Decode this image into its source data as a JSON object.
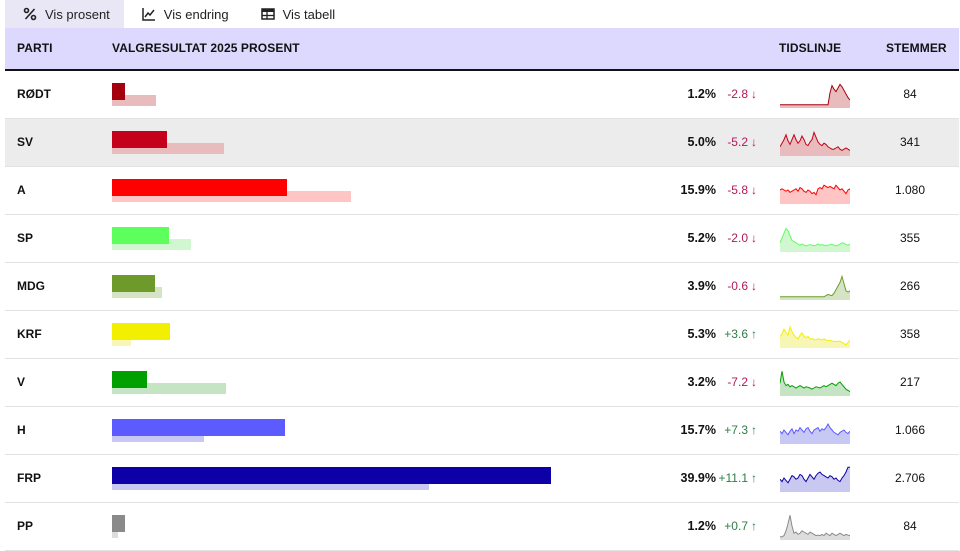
{
  "tabs": [
    {
      "label": "Vis prosent",
      "icon": "percent-icon",
      "active": true
    },
    {
      "label": "Vis endring",
      "icon": "line-chart-icon",
      "active": false
    },
    {
      "label": "Vis tabell",
      "icon": "table-icon",
      "active": false
    }
  ],
  "table": {
    "headers": {
      "party": "PARTI",
      "result": "VALGRESULTAT 2025 PROSENT",
      "timeline": "TIDSLINJE",
      "votes": "STEMMER"
    },
    "rows": [
      {
        "party": "RØDT",
        "pct": 1.2,
        "pct_label": "1.2%",
        "prev_pct": 4.0,
        "change": "-2.8",
        "dir": "down",
        "votes": "84",
        "color": "#a5000e",
        "light": "#e8bcbc",
        "spark": [
          0.05,
          0.05,
          0.05,
          0.05,
          0.05,
          0.05,
          0.05,
          0.05,
          0.05,
          0.05,
          0.05,
          0.05,
          0.05,
          0.05,
          0.05,
          0.05,
          0.05,
          0.05,
          0.05,
          0.05,
          0.05,
          0.05,
          0.05,
          0.05,
          0.05,
          0.55,
          0.85,
          0.7,
          0.6,
          0.75,
          0.9,
          0.8,
          0.65,
          0.5,
          0.35,
          0.25
        ]
      },
      {
        "party": "SV",
        "pct": 5.0,
        "pct_label": "5.0%",
        "prev_pct": 10.2,
        "change": "-5.2",
        "dir": "down",
        "votes": "341",
        "color": "#c4001a",
        "light": "#e8bcbc",
        "spark": [
          0.3,
          0.45,
          0.6,
          0.8,
          0.55,
          0.4,
          0.6,
          0.8,
          0.6,
          0.45,
          0.55,
          0.75,
          0.6,
          0.4,
          0.35,
          0.5,
          0.6,
          0.9,
          0.7,
          0.5,
          0.4,
          0.35,
          0.45,
          0.4,
          0.3,
          0.25,
          0.2,
          0.2,
          0.25,
          0.3,
          0.2,
          0.15,
          0.2,
          0.25,
          0.2,
          0.15
        ]
      },
      {
        "party": "A",
        "pct": 15.9,
        "pct_label": "15.9%",
        "prev_pct": 21.7,
        "change": "-5.8",
        "dir": "down",
        "votes": "1.080",
        "color": "#ff0000",
        "light": "#ffc4c4",
        "spark": [
          0.5,
          0.55,
          0.5,
          0.45,
          0.5,
          0.4,
          0.45,
          0.5,
          0.55,
          0.45,
          0.6,
          0.55,
          0.45,
          0.4,
          0.5,
          0.45,
          0.35,
          0.4,
          0.3,
          0.55,
          0.6,
          0.55,
          0.7,
          0.65,
          0.6,
          0.65,
          0.6,
          0.55,
          0.7,
          0.6,
          0.5,
          0.55,
          0.45,
          0.35,
          0.5,
          0.55
        ]
      },
      {
        "party": "SP",
        "pct": 5.2,
        "pct_label": "5.2%",
        "prev_pct": 7.2,
        "change": "-2.0",
        "dir": "down",
        "votes": "355",
        "color": "#5cff5c",
        "light": "#d0f7d0",
        "spark": [
          0.3,
          0.5,
          0.7,
          0.9,
          0.8,
          0.6,
          0.4,
          0.35,
          0.3,
          0.25,
          0.2,
          0.25,
          0.2,
          0.18,
          0.2,
          0.22,
          0.2,
          0.18,
          0.2,
          0.25,
          0.2,
          0.22,
          0.2,
          0.18,
          0.2,
          0.22,
          0.25,
          0.2,
          0.18,
          0.2,
          0.25,
          0.3,
          0.28,
          0.22,
          0.2,
          0.25
        ]
      },
      {
        "party": "MDG",
        "pct": 3.9,
        "pct_label": "3.9%",
        "prev_pct": 4.5,
        "change": "-0.6",
        "dir": "down",
        "votes": "266",
        "color": "#6e9a2c",
        "light": "#d4e4c4",
        "spark": [
          0.05,
          0.05,
          0.05,
          0.05,
          0.05,
          0.05,
          0.05,
          0.05,
          0.05,
          0.05,
          0.05,
          0.05,
          0.05,
          0.05,
          0.05,
          0.05,
          0.05,
          0.05,
          0.05,
          0.05,
          0.05,
          0.05,
          0.05,
          0.1,
          0.15,
          0.12,
          0.1,
          0.2,
          0.35,
          0.5,
          0.65,
          0.9,
          0.6,
          0.3,
          0.25,
          0.3
        ]
      },
      {
        "party": "KRF",
        "pct": 5.3,
        "pct_label": "5.3%",
        "prev_pct": 1.7,
        "change": "+3.6",
        "dir": "up",
        "votes": "358",
        "color": "#f2ef00",
        "light": "#f8f6b4",
        "spark": [
          0.4,
          0.5,
          0.7,
          0.55,
          0.45,
          0.8,
          0.6,
          0.45,
          0.35,
          0.3,
          0.45,
          0.55,
          0.4,
          0.35,
          0.4,
          0.3,
          0.3,
          0.28,
          0.25,
          0.3,
          0.28,
          0.25,
          0.3,
          0.25,
          0.22,
          0.25,
          0.2,
          0.2,
          0.18,
          0.2,
          0.2,
          0.15,
          0.1,
          0.05,
          0.15,
          0.25
        ]
      },
      {
        "party": "V",
        "pct": 3.2,
        "pct_label": "3.2%",
        "prev_pct": 10.4,
        "change": "-7.2",
        "dir": "down",
        "votes": "217",
        "color": "#00a000",
        "light": "#c4e4c4",
        "spark": [
          0.45,
          0.95,
          0.5,
          0.35,
          0.4,
          0.3,
          0.35,
          0.3,
          0.25,
          0.3,
          0.35,
          0.3,
          0.25,
          0.3,
          0.28,
          0.25,
          0.2,
          0.25,
          0.3,
          0.28,
          0.25,
          0.3,
          0.35,
          0.3,
          0.35,
          0.4,
          0.45,
          0.4,
          0.35,
          0.45,
          0.5,
          0.4,
          0.3,
          0.2,
          0.15,
          0.1
        ]
      },
      {
        "party": "H",
        "pct": 15.7,
        "pct_label": "15.7%",
        "prev_pct": 8.4,
        "change": "+7.3",
        "dir": "up",
        "votes": "1.066",
        "color": "#5b5bff",
        "light": "#c8c8f4",
        "spark": [
          0.45,
          0.35,
          0.5,
          0.4,
          0.3,
          0.45,
          0.55,
          0.35,
          0.5,
          0.45,
          0.6,
          0.5,
          0.4,
          0.55,
          0.6,
          0.45,
          0.35,
          0.5,
          0.55,
          0.6,
          0.45,
          0.55,
          0.5,
          0.6,
          0.75,
          0.6,
          0.5,
          0.4,
          0.35,
          0.3,
          0.4,
          0.45,
          0.5,
          0.4,
          0.35,
          0.45
        ]
      },
      {
        "party": "FRP",
        "pct": 39.9,
        "pct_label": "39.9%",
        "prev_pct": 28.8,
        "change": "+11.1",
        "dir": "up",
        "votes": "2.706",
        "color": "#0c00a6",
        "light": "#c8c8f0",
        "spark": [
          0.45,
          0.35,
          0.5,
          0.4,
          0.3,
          0.45,
          0.6,
          0.55,
          0.45,
          0.5,
          0.65,
          0.6,
          0.45,
          0.35,
          0.5,
          0.65,
          0.55,
          0.45,
          0.6,
          0.7,
          0.75,
          0.65,
          0.6,
          0.55,
          0.5,
          0.6,
          0.55,
          0.45,
          0.5,
          0.4,
          0.35,
          0.5,
          0.6,
          0.75,
          0.95,
          0.95
        ]
      },
      {
        "party": "PP",
        "pct": 1.2,
        "pct_label": "1.2%",
        "prev_pct": 0.5,
        "change": "+0.7",
        "dir": "up",
        "votes": "84",
        "color": "#8a8a8a",
        "light": "#dddddd",
        "spark": [
          0.05,
          0.05,
          0.1,
          0.3,
          0.6,
          0.95,
          0.5,
          0.2,
          0.25,
          0.15,
          0.2,
          0.3,
          0.25,
          0.2,
          0.15,
          0.25,
          0.2,
          0.15,
          0.1,
          0.12,
          0.1,
          0.15,
          0.1,
          0.2,
          0.15,
          0.1,
          0.2,
          0.15,
          0.1,
          0.15,
          0.2,
          0.15,
          0.1,
          0.15,
          0.12,
          0.1
        ]
      }
    ]
  }
}
